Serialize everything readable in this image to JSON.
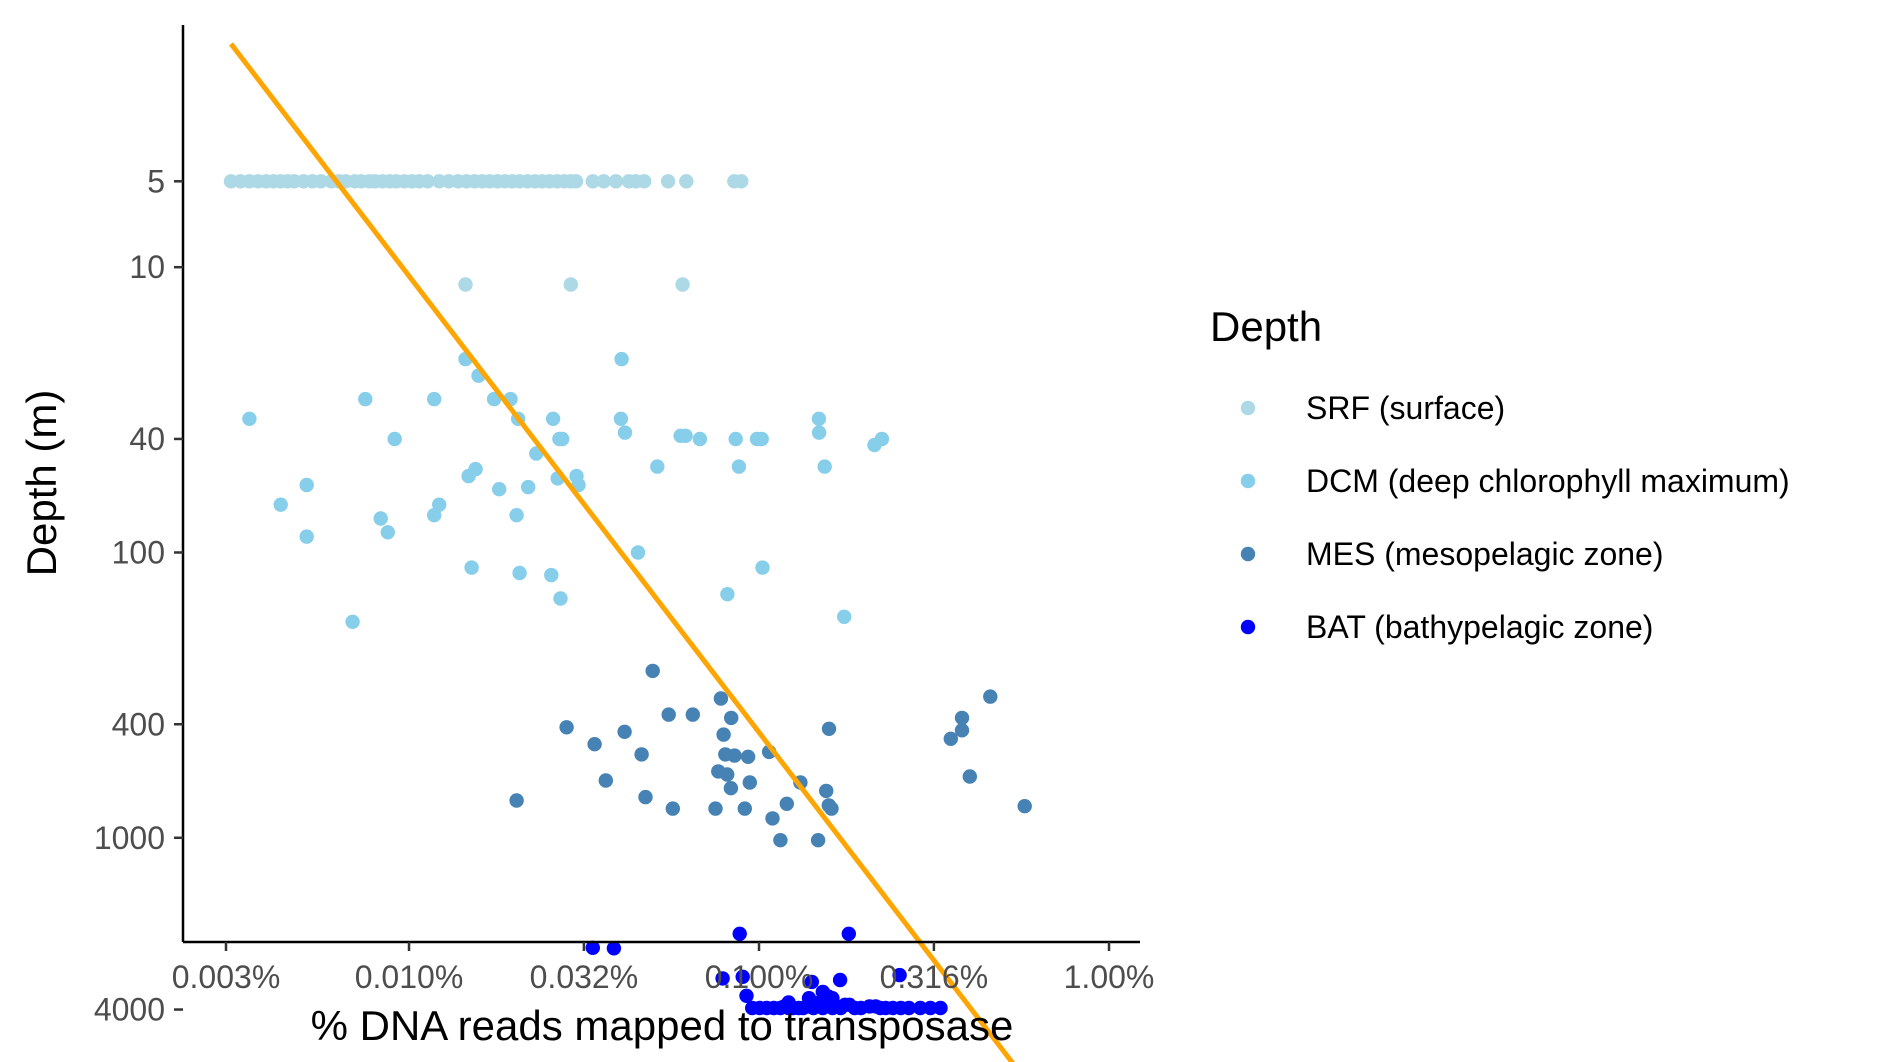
{
  "chart_data": {
    "type": "scatter",
    "xlabel": "% DNA reads mapped to transposase",
    "ylabel": "Depth (m)",
    "x_scale": "log10",
    "y_scale": "log10 (reversed)",
    "xlim": [
      0.0026,
      1.3
    ],
    "ylim": [
      1.1,
      12000
    ],
    "x_ticks": [
      {
        "value": 0.003,
        "label": "0.003%"
      },
      {
        "value": 0.01,
        "label": "0.010%"
      },
      {
        "value": 0.0316,
        "label": "0.032%"
      },
      {
        "value": 0.1,
        "label": "0.100%"
      },
      {
        "value": 0.316,
        "label": "0.316%"
      },
      {
        "value": 1.0,
        "label": "1.00%"
      }
    ],
    "y_ticks": [
      {
        "value": 5,
        "label": "5"
      },
      {
        "value": 10,
        "label": "10"
      },
      {
        "value": 40,
        "label": "40"
      },
      {
        "value": 100,
        "label": "100"
      },
      {
        "value": 400,
        "label": "400"
      },
      {
        "value": 1000,
        "label": "1000"
      },
      {
        "value": 4000,
        "label": "4000"
      }
    ],
    "grid": false,
    "legend": {
      "title": "Depth",
      "position": "right"
    },
    "trend_line": {
      "color": "#FFA500",
      "points": [
        {
          "x": 0.0031,
          "y": 1.65
        },
        {
          "x": 0.59,
          "y": 7300
        }
      ]
    },
    "series": [
      {
        "name": "SRF (surface)",
        "color": "#ADD8E6",
        "points": [
          [
            0.0031,
            5
          ],
          [
            0.0033,
            5
          ],
          [
            0.0035,
            5
          ],
          [
            0.0037,
            5
          ],
          [
            0.0039,
            5
          ],
          [
            0.0041,
            5
          ],
          [
            0.0043,
            5
          ],
          [
            0.0045,
            5
          ],
          [
            0.0047,
            5
          ],
          [
            0.005,
            5
          ],
          [
            0.0053,
            5
          ],
          [
            0.0056,
            5
          ],
          [
            0.006,
            5
          ],
          [
            0.0063,
            5
          ],
          [
            0.0066,
            5
          ],
          [
            0.007,
            5
          ],
          [
            0.0073,
            5
          ],
          [
            0.0077,
            5
          ],
          [
            0.008,
            5
          ],
          [
            0.0084,
            5
          ],
          [
            0.0088,
            5
          ],
          [
            0.0092,
            5
          ],
          [
            0.0097,
            5
          ],
          [
            0.0102,
            5
          ],
          [
            0.0107,
            5
          ],
          [
            0.0113,
            5
          ],
          [
            0.0122,
            5
          ],
          [
            0.013,
            5
          ],
          [
            0.0138,
            5
          ],
          [
            0.0146,
            5
          ],
          [
            0.0154,
            5
          ],
          [
            0.0162,
            5
          ],
          [
            0.017,
            5
          ],
          [
            0.0179,
            5
          ],
          [
            0.0188,
            5
          ],
          [
            0.0197,
            5
          ],
          [
            0.0207,
            5
          ],
          [
            0.0218,
            5
          ],
          [
            0.0229,
            5
          ],
          [
            0.024,
            5
          ],
          [
            0.0252,
            5
          ],
          [
            0.0265,
            5
          ],
          [
            0.0278,
            5
          ],
          [
            0.029,
            5
          ],
          [
            0.03,
            5
          ],
          [
            0.0335,
            5
          ],
          [
            0.036,
            5
          ],
          [
            0.039,
            5
          ],
          [
            0.0425,
            5
          ],
          [
            0.0445,
            5
          ],
          [
            0.047,
            5
          ],
          [
            0.055,
            5
          ],
          [
            0.062,
            5
          ],
          [
            0.085,
            5
          ],
          [
            0.089,
            5
          ],
          [
            0.0145,
            11.5
          ],
          [
            0.029,
            11.5
          ],
          [
            0.0605,
            11.5
          ]
        ]
      },
      {
        "name": "DCM (deep chlorophyll maximum)",
        "color": "#87CEEB",
        "points": [
          [
            0.0145,
            21
          ],
          [
            0.0158,
            24
          ],
          [
            0.0175,
            29
          ],
          [
            0.0195,
            29
          ],
          [
            0.0405,
            21
          ],
          [
            0.0075,
            29
          ],
          [
            0.0118,
            29
          ],
          [
            0.0035,
            34
          ],
          [
            0.0205,
            34
          ],
          [
            0.0258,
            34
          ],
          [
            0.0403,
            34
          ],
          [
            0.0597,
            39
          ],
          [
            0.0617,
            39
          ],
          [
            0.1483,
            34
          ],
          [
            0.0414,
            38
          ],
          [
            0.0269,
            40
          ],
          [
            0.0274,
            40
          ],
          [
            0.0091,
            40
          ],
          [
            0.0678,
            40
          ],
          [
            0.0858,
            40
          ],
          [
            0.0987,
            40
          ],
          [
            0.1018,
            40
          ],
          [
            0.1485,
            38
          ],
          [
            0.2138,
            42
          ],
          [
            0.2245,
            40
          ],
          [
            0.0231,
            45
          ],
          [
            0.0155,
            51
          ],
          [
            0.0148,
            54
          ],
          [
            0.0181,
            60
          ],
          [
            0.0219,
            59
          ],
          [
            0.0266,
            55
          ],
          [
            0.0301,
            54
          ],
          [
            0.0305,
            58
          ],
          [
            0.0512,
            50
          ],
          [
            0.0876,
            50
          ],
          [
            0.1541,
            50
          ],
          [
            0.0051,
            58
          ],
          [
            0.0043,
            68
          ],
          [
            0.0122,
            68
          ],
          [
            0.0118,
            74
          ],
          [
            0.0203,
            74
          ],
          [
            0.0083,
            76
          ],
          [
            0.0087,
            85
          ],
          [
            0.0051,
            88
          ],
          [
            0.0451,
            100
          ],
          [
            0.0151,
            113
          ],
          [
            0.0207,
            118
          ],
          [
            0.0255,
            120
          ],
          [
            0.0271,
            145
          ],
          [
            0.1023,
            113
          ],
          [
            0.0812,
            140
          ],
          [
            0.0069,
            175
          ],
          [
            0.1751,
            168
          ]
        ]
      },
      {
        "name": "MES (mesopelagic zone)",
        "color": "#4682B4",
        "points": [
          [
            0.0497,
            260
          ],
          [
            0.0778,
            325
          ],
          [
            0.0552,
            370
          ],
          [
            0.0647,
            370
          ],
          [
            0.0833,
            380
          ],
          [
            0.0282,
            410
          ],
          [
            0.0413,
            425
          ],
          [
            0.0792,
            435
          ],
          [
            0.0339,
            470
          ],
          [
            0.0462,
            510
          ],
          [
            0.0801,
            510
          ],
          [
            0.0851,
            515
          ],
          [
            0.0931,
            520
          ],
          [
            0.1069,
            500
          ],
          [
            0.0765,
            585
          ],
          [
            0.0811,
            600
          ],
          [
            0.0941,
            640
          ],
          [
            0.0831,
            670
          ],
          [
            0.1313,
            640
          ],
          [
            0.1556,
            685
          ],
          [
            0.0365,
            630
          ],
          [
            0.0474,
            720
          ],
          [
            0.0203,
            740
          ],
          [
            0.0567,
            790
          ],
          [
            0.0751,
            790
          ],
          [
            0.0911,
            790
          ],
          [
            0.1201,
            760
          ],
          [
            0.1583,
            770
          ],
          [
            0.1093,
            855
          ],
          [
            0.1151,
            1020
          ],
          [
            0.1475,
            1020
          ],
          [
            0.1611,
            790
          ],
          [
            0.1585,
            415
          ],
          [
            0.3531,
            450
          ],
          [
            0.3801,
            380
          ],
          [
            0.3801,
            420
          ],
          [
            0.4581,
            320
          ],
          [
            0.4001,
            610
          ],
          [
            0.5741,
            775
          ]
        ]
      },
      {
        "name": "BAT (bathypelagic zone)",
        "color": "#0000FF",
        "points": [
          [
            0.0335,
            2430
          ],
          [
            0.0385,
            2440
          ],
          [
            0.0881,
            2170
          ],
          [
            0.1805,
            2170
          ],
          [
            0.0787,
            3110
          ],
          [
            0.0898,
            3070
          ],
          [
            0.2521,
            3030
          ],
          [
            0.0921,
            3580
          ],
          [
            0.0956,
            3950
          ],
          [
            0.1005,
            3950
          ],
          [
            0.1051,
            3950
          ],
          [
            0.1102,
            3950
          ],
          [
            0.1151,
            3950
          ],
          [
            0.1181,
            3900
          ],
          [
            0.1215,
            3950
          ],
          [
            0.1251,
            3950
          ],
          [
            0.1298,
            3950
          ],
          [
            0.1337,
            3950
          ],
          [
            0.1389,
            3900
          ],
          [
            0.1431,
            3950
          ],
          [
            0.1461,
            3800
          ],
          [
            0.1495,
            3900
          ],
          [
            0.1521,
            3950
          ],
          [
            0.1553,
            3900
          ],
          [
            0.1589,
            3800
          ],
          [
            0.1623,
            3950
          ],
          [
            0.1659,
            3900
          ],
          [
            0.1712,
            3950
          ],
          [
            0.1761,
            3850
          ],
          [
            0.1812,
            3850
          ],
          [
            0.1877,
            3950
          ],
          [
            0.1956,
            3950
          ],
          [
            0.2069,
            3900
          ],
          [
            0.2155,
            3900
          ],
          [
            0.2221,
            3950
          ],
          [
            0.2305,
            3950
          ],
          [
            0.2411,
            3950
          ],
          [
            0.2541,
            3950
          ],
          [
            0.2681,
            3950
          ],
          [
            0.2889,
            3950
          ],
          [
            0.3089,
            3950
          ],
          [
            0.3301,
            3950
          ],
          [
            0.1215,
            3780
          ],
          [
            0.1415,
            3200
          ],
          [
            0.1521,
            3470
          ],
          [
            0.1575,
            3600
          ],
          [
            0.1705,
            3150
          ],
          [
            0.1621,
            3650
          ],
          [
            0.1389,
            3650
          ]
        ]
      }
    ]
  }
}
